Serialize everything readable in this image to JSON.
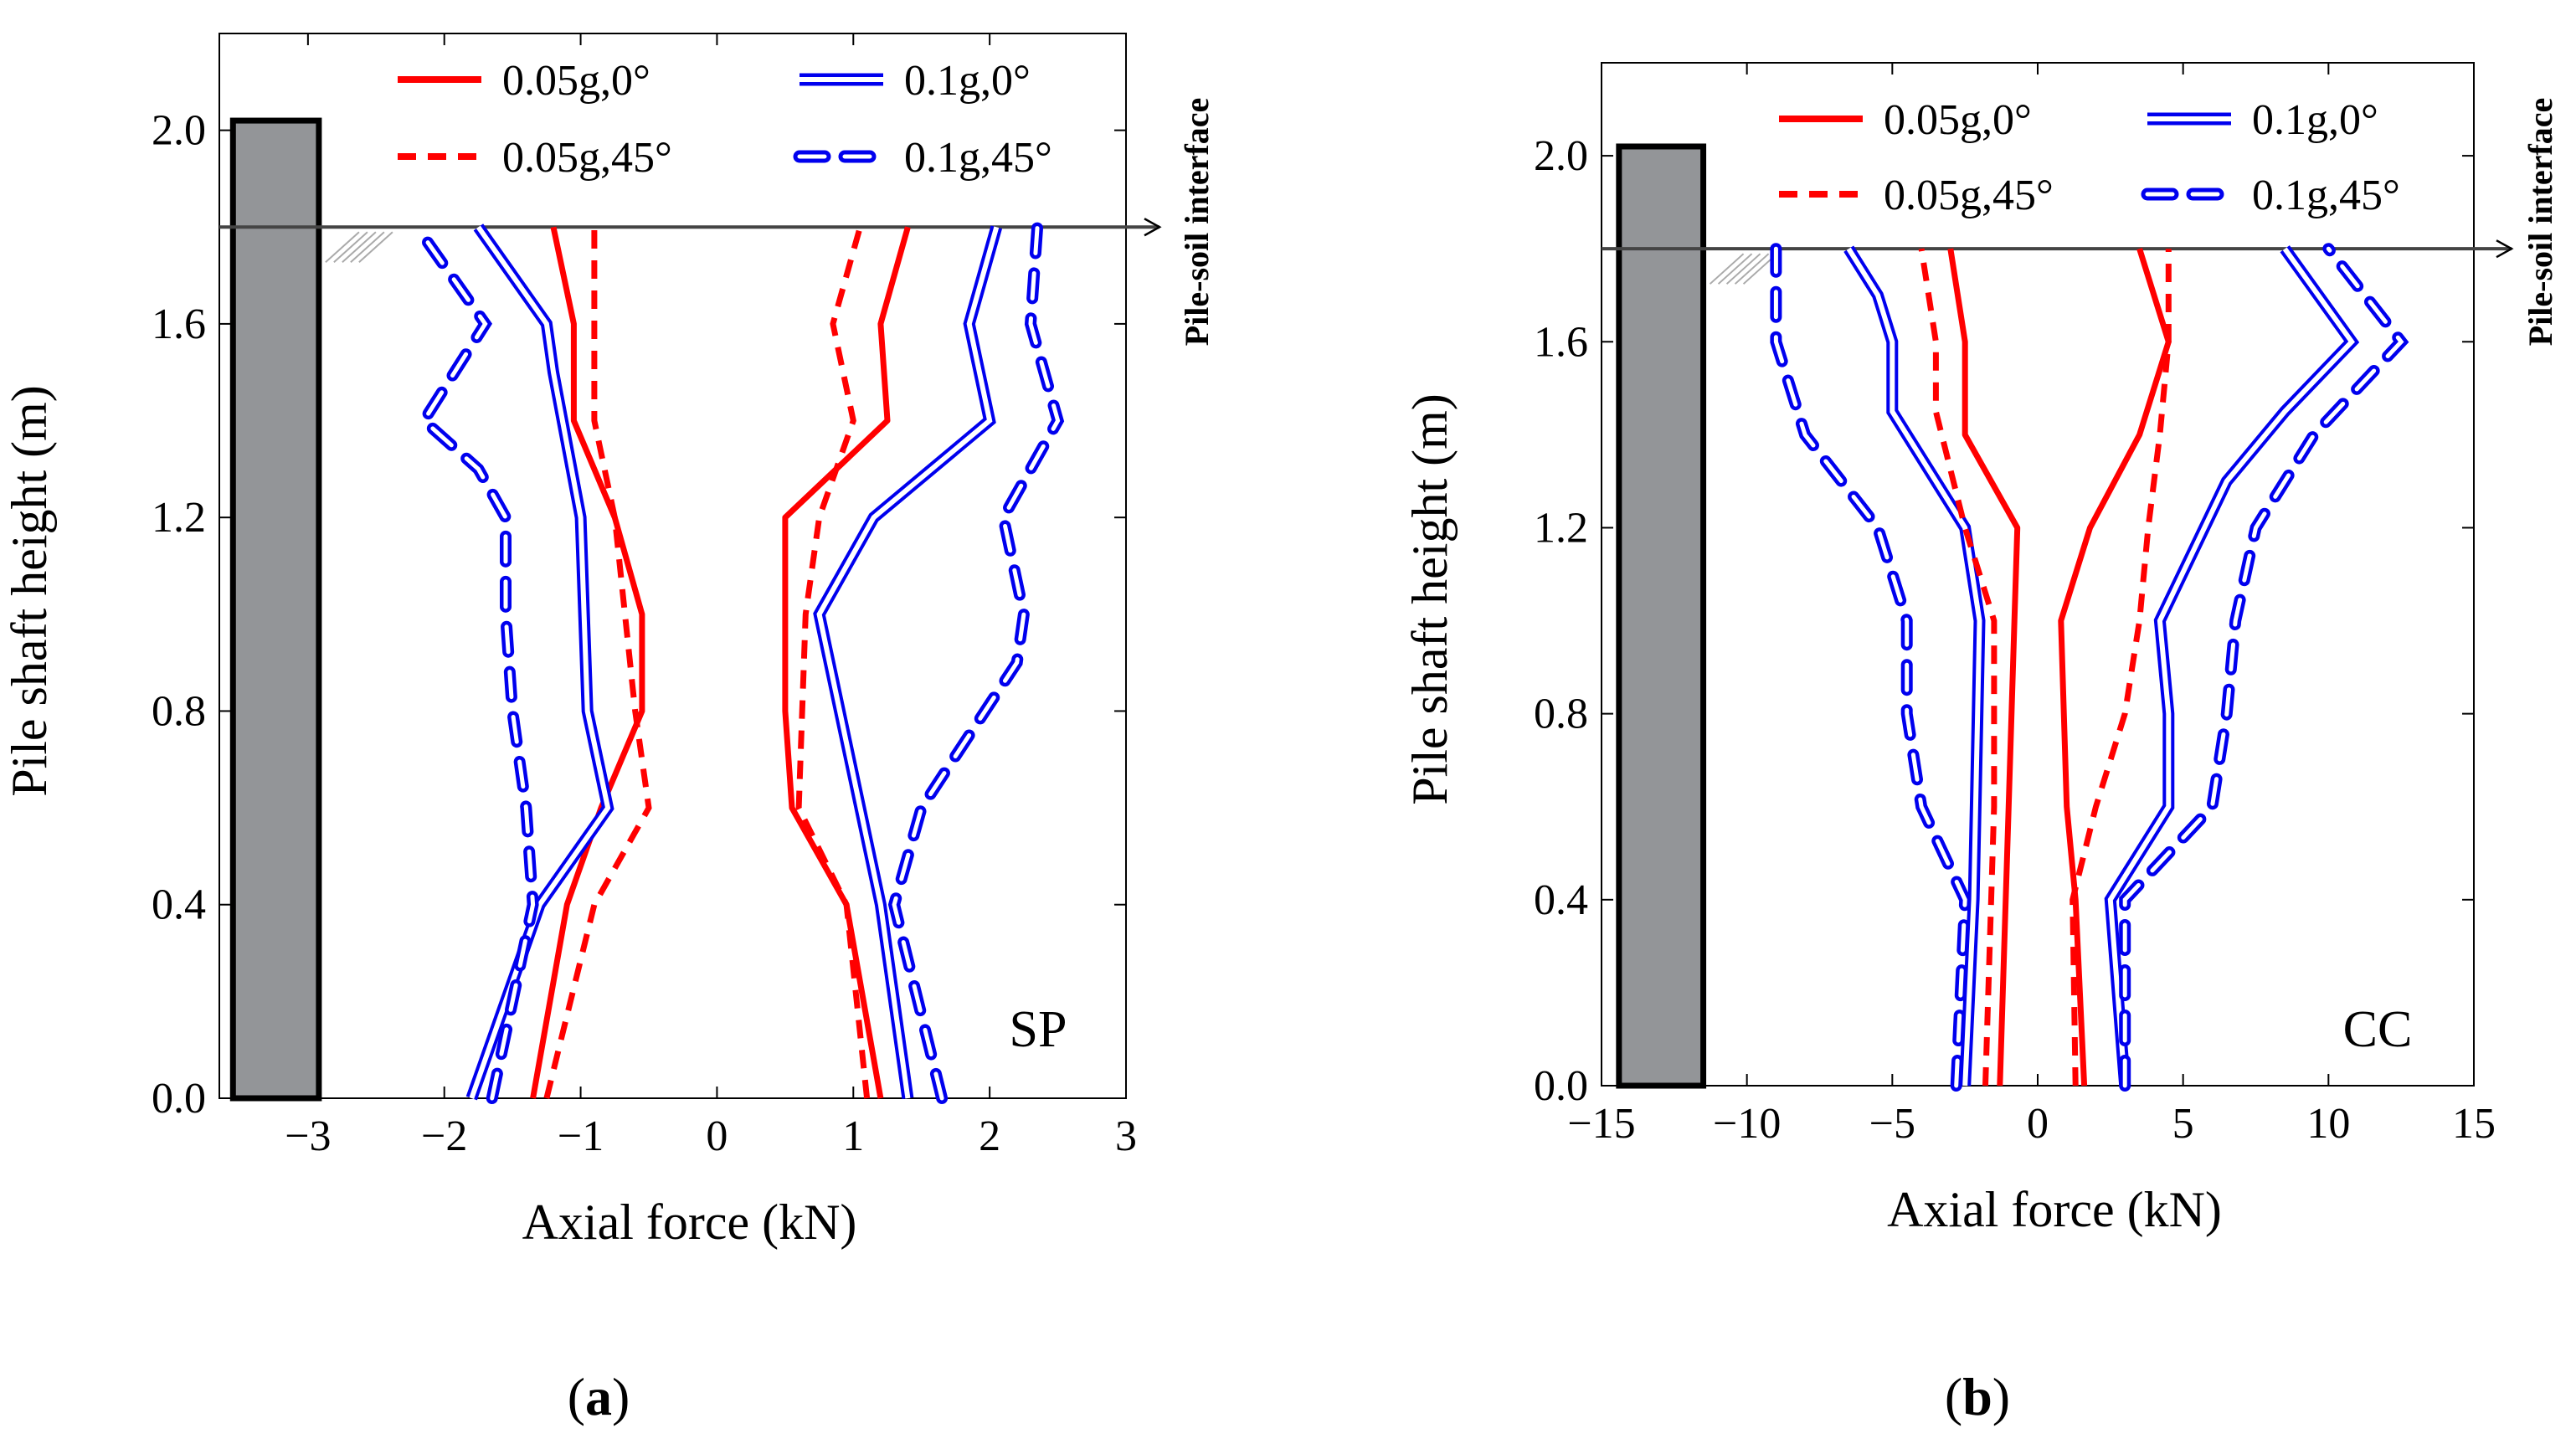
{
  "colors": {
    "red": "#ff0000",
    "blue": "#0000ee",
    "pile_fill": "#939598"
  },
  "chart_data": [
    {
      "type": "line",
      "panel": "a",
      "panel_label_prefix": "(",
      "panel_letter": "a",
      "panel_label_suffix": ")",
      "tag": "SP",
      "xlabel": "Axial force (kN)",
      "ylabel": "Pile shaft height (m)",
      "xlim": [
        -3.65,
        3.0
      ],
      "ylim": [
        0.0,
        2.2
      ],
      "xticks": [
        -3,
        -2,
        -1,
        0,
        1,
        2,
        3
      ],
      "xtick_labels": [
        "−3",
        "−2",
        "−1",
        "0",
        "1",
        "2",
        "3"
      ],
      "yticks": [
        0.0,
        0.4,
        0.8,
        1.2,
        1.6,
        2.0
      ],
      "ytick_labels": [
        "0.0",
        "0.4",
        "0.8",
        "1.2",
        "1.6",
        "2.0"
      ],
      "interface_y": 1.8,
      "interface_label": "Pile-soil interface",
      "pile": {
        "x_left": -3.55,
        "x_right": -2.92,
        "top": 2.02
      },
      "legend": [
        {
          "label": "0.05g,0°",
          "color": "red",
          "style": "solid"
        },
        {
          "label": "0.1g,0°",
          "color": "blue",
          "style": "double"
        },
        {
          "label": "0.05g,45°",
          "color": "red",
          "style": "dash"
        },
        {
          "label": "0.1g,45°",
          "color": "blue",
          "style": "double-dash"
        }
      ],
      "series": [
        {
          "name": "0.05g,0°",
          "color": "red",
          "style": "solid",
          "left": [
            [
              -1.35,
              0.0
            ],
            [
              -1.1,
              0.4
            ],
            [
              -0.85,
              0.6
            ],
            [
              -0.55,
              0.8
            ],
            [
              -0.55,
              1.0
            ],
            [
              -0.75,
              1.2
            ],
            [
              -1.05,
              1.4
            ],
            [
              -1.05,
              1.6
            ],
            [
              -1.2,
              1.8
            ]
          ],
          "right": [
            [
              1.2,
              0.0
            ],
            [
              0.95,
              0.4
            ],
            [
              0.55,
              0.6
            ],
            [
              0.5,
              0.8
            ],
            [
              0.5,
              1.2
            ],
            [
              1.25,
              1.4
            ],
            [
              1.2,
              1.6
            ],
            [
              1.4,
              1.8
            ]
          ]
        },
        {
          "name": "0.1g,0°",
          "color": "blue",
          "style": "double",
          "left": [
            [
              -1.8,
              0.0
            ],
            [
              -1.3,
              0.4
            ],
            [
              -0.8,
              0.6
            ],
            [
              -0.95,
              0.8
            ],
            [
              -1.0,
              1.2
            ],
            [
              -1.2,
              1.5
            ],
            [
              -1.25,
              1.6
            ],
            [
              -1.75,
              1.8
            ]
          ],
          "right": [
            [
              1.4,
              0.0
            ],
            [
              1.2,
              0.4
            ],
            [
              0.75,
              1.0
            ],
            [
              1.15,
              1.2
            ],
            [
              2.0,
              1.4
            ],
            [
              1.85,
              1.6
            ],
            [
              2.05,
              1.8
            ]
          ]
        },
        {
          "name": "0.05g,45°",
          "color": "red",
          "style": "dash",
          "left": [
            [
              -1.25,
              0.0
            ],
            [
              -0.9,
              0.4
            ],
            [
              -0.5,
              0.6
            ],
            [
              -0.6,
              0.8
            ],
            [
              -0.75,
              1.2
            ],
            [
              -0.9,
              1.4
            ],
            [
              -0.9,
              1.6
            ],
            [
              -0.9,
              1.8
            ]
          ],
          "right": [
            [
              1.1,
              0.0
            ],
            [
              0.95,
              0.4
            ],
            [
              0.6,
              0.6
            ],
            [
              0.65,
              1.0
            ],
            [
              0.75,
              1.2
            ],
            [
              1.0,
              1.4
            ],
            [
              0.85,
              1.6
            ],
            [
              1.05,
              1.8
            ]
          ]
        },
        {
          "name": "0.1g,45°",
          "color": "blue",
          "style": "double-dash",
          "left": [
            [
              -1.65,
              0.0
            ],
            [
              -1.35,
              0.4
            ],
            [
              -1.4,
              0.6
            ],
            [
              -1.5,
              0.8
            ],
            [
              -1.55,
              1.0
            ],
            [
              -1.55,
              1.2
            ],
            [
              -1.75,
              1.3
            ],
            [
              -2.15,
              1.4
            ],
            [
              -1.7,
              1.6
            ],
            [
              -2.2,
              1.8
            ]
          ],
          "right": [
            [
              1.65,
              0.0
            ],
            [
              1.3,
              0.4
            ],
            [
              1.5,
              0.6
            ],
            [
              2.2,
              0.9
            ],
            [
              2.25,
              1.0
            ],
            [
              2.1,
              1.2
            ],
            [
              2.5,
              1.4
            ],
            [
              2.3,
              1.6
            ],
            [
              2.35,
              1.8
            ]
          ]
        }
      ]
    },
    {
      "type": "line",
      "panel": "b",
      "panel_label_prefix": "(",
      "panel_letter": "b",
      "panel_label_suffix": ")",
      "tag": "CC",
      "xlabel": "Axial force (kN)",
      "ylabel": "Pile shaft height (m)",
      "xlim": [
        -15,
        15
      ],
      "ylim": [
        0.0,
        2.2
      ],
      "xticks": [
        -15,
        -10,
        -5,
        0,
        5,
        10,
        15
      ],
      "xtick_labels": [
        "−15",
        "−10",
        "−5",
        "0",
        "5",
        "10",
        "15"
      ],
      "yticks": [
        0.0,
        0.4,
        0.8,
        1.2,
        1.6,
        2.0
      ],
      "ytick_labels": [
        "0.0",
        "0.4",
        "0.8",
        "1.2",
        "1.6",
        "2.0"
      ],
      "interface_y": 1.8,
      "interface_label": "Pile-soil interface",
      "pile": {
        "x_left": -14.4,
        "x_right": -11.5,
        "top": 2.02
      },
      "legend": [
        {
          "label": "0.05g,0°",
          "color": "red",
          "style": "solid"
        },
        {
          "label": "0.1g,0°",
          "color": "blue",
          "style": "double"
        },
        {
          "label": "0.05g,45°",
          "color": "red",
          "style": "dash"
        },
        {
          "label": "0.1g,45°",
          "color": "blue",
          "style": "double-dash"
        }
      ],
      "series": [
        {
          "name": "0.05g,0°",
          "color": "red",
          "style": "solid",
          "left": [
            [
              -1.3,
              0.0
            ],
            [
              -1.0,
              0.6
            ],
            [
              -0.8,
              1.0
            ],
            [
              -0.7,
              1.2
            ],
            [
              -2.5,
              1.4
            ],
            [
              -2.5,
              1.6
            ],
            [
              -3.0,
              1.8
            ]
          ],
          "right": [
            [
              1.6,
              0.0
            ],
            [
              1.3,
              0.4
            ],
            [
              1.0,
              0.6
            ],
            [
              0.8,
              1.0
            ],
            [
              1.8,
              1.2
            ],
            [
              3.5,
              1.4
            ],
            [
              4.5,
              1.6
            ],
            [
              3.5,
              1.8
            ]
          ]
        },
        {
          "name": "0.1g,0°",
          "color": "blue",
          "style": "double",
          "left": [
            [
              -2.5,
              0.0
            ],
            [
              -2.2,
              0.4
            ],
            [
              -2.0,
              1.0
            ],
            [
              -2.5,
              1.2
            ],
            [
              -3.5,
              1.3
            ],
            [
              -5.0,
              1.45
            ],
            [
              -5.0,
              1.6
            ],
            [
              -5.5,
              1.7
            ],
            [
              -6.5,
              1.8
            ]
          ],
          "right": [
            [
              3.0,
              0.0
            ],
            [
              2.5,
              0.4
            ],
            [
              4.5,
              0.6
            ],
            [
              4.5,
              0.8
            ],
            [
              4.2,
              1.0
            ],
            [
              6.5,
              1.3
            ],
            [
              8.5,
              1.45
            ],
            [
              10.8,
              1.6
            ],
            [
              8.5,
              1.8
            ]
          ]
        },
        {
          "name": "0.05g,45°",
          "color": "red",
          "style": "dash",
          "left": [
            [
              -1.8,
              0.0
            ],
            [
              -1.5,
              0.6
            ],
            [
              -1.5,
              1.0
            ],
            [
              -2.5,
              1.2
            ],
            [
              -3.5,
              1.45
            ],
            [
              -3.5,
              1.6
            ],
            [
              -4.0,
              1.8
            ]
          ],
          "right": [
            [
              1.3,
              0.0
            ],
            [
              1.2,
              0.4
            ],
            [
              2.0,
              0.6
            ],
            [
              3.0,
              0.8
            ],
            [
              3.5,
              1.0
            ],
            [
              3.8,
              1.2
            ],
            [
              4.2,
              1.4
            ],
            [
              4.5,
              1.6
            ],
            [
              4.5,
              1.8
            ]
          ]
        },
        {
          "name": "0.1g,45°",
          "color": "blue",
          "style": "double-dash",
          "left": [
            [
              -2.8,
              0.0
            ],
            [
              -2.5,
              0.4
            ],
            [
              -4.0,
              0.6
            ],
            [
              -4.5,
              0.8
            ],
            [
              -4.5,
              1.0
            ],
            [
              -5.5,
              1.2
            ],
            [
              -8.0,
              1.4
            ],
            [
              -9.0,
              1.6
            ],
            [
              -9.0,
              1.8
            ]
          ],
          "right": [
            [
              3.0,
              0.0
            ],
            [
              3.0,
              0.4
            ],
            [
              6.0,
              0.6
            ],
            [
              6.5,
              0.8
            ],
            [
              6.8,
              1.0
            ],
            [
              7.5,
              1.2
            ],
            [
              9.5,
              1.4
            ],
            [
              12.5,
              1.6
            ],
            [
              10.0,
              1.8
            ]
          ]
        }
      ]
    }
  ]
}
